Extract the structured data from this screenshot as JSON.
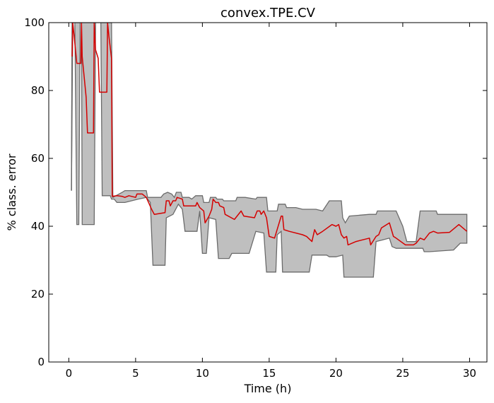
{
  "chart_data": {
    "type": "area",
    "title": "convex.TPE.CV",
    "xlabel": "Time (h)",
    "ylabel": "% class. error",
    "xlim": [
      -1.5,
      31.3
    ],
    "ylim": [
      0,
      100
    ],
    "xticks": [
      0,
      5,
      10,
      15,
      20,
      25,
      30
    ],
    "yticks": [
      0,
      20,
      40,
      60,
      80,
      100
    ],
    "grid": false,
    "colors": {
      "band_fill": "#bfbfbf",
      "band_edge": "#6b6b6b",
      "mean_line": "#d40000"
    },
    "band_upper": [
      [
        0.2,
        50.5
      ],
      [
        0.25,
        100
      ],
      [
        0.8,
        100
      ],
      [
        0.85,
        100
      ],
      [
        1.0,
        100
      ],
      [
        1.8,
        100
      ],
      [
        1.9,
        100
      ],
      [
        2.3,
        100
      ],
      [
        3.2,
        100
      ],
      [
        3.3,
        48.5
      ],
      [
        4.0,
        50.0
      ],
      [
        4.2,
        50.5
      ],
      [
        5.0,
        50.5
      ],
      [
        5.8,
        50.5
      ],
      [
        5.9,
        48.5
      ],
      [
        6.9,
        48.5
      ],
      [
        7.1,
        49.5
      ],
      [
        7.4,
        50.0
      ],
      [
        7.7,
        49.5
      ],
      [
        7.9,
        48.5
      ],
      [
        8.05,
        50.0
      ],
      [
        8.4,
        50.0
      ],
      [
        8.5,
        48.5
      ],
      [
        9.0,
        48.5
      ],
      [
        9.2,
        48.0
      ],
      [
        9.5,
        49.0
      ],
      [
        10.0,
        49.0
      ],
      [
        10.1,
        47.0
      ],
      [
        10.5,
        47.0
      ],
      [
        10.6,
        48.5
      ],
      [
        11.0,
        48.5
      ],
      [
        11.1,
        48.0
      ],
      [
        11.5,
        48.0
      ],
      [
        11.6,
        47.5
      ],
      [
        12.5,
        47.5
      ],
      [
        12.6,
        48.5
      ],
      [
        13.2,
        48.5
      ],
      [
        14.0,
        48.0
      ],
      [
        14.1,
        48.5
      ],
      [
        14.8,
        48.5
      ],
      [
        14.9,
        44.5
      ],
      [
        15.6,
        44.5
      ],
      [
        15.7,
        46.5
      ],
      [
        16.2,
        46.5
      ],
      [
        16.3,
        45.5
      ],
      [
        17.0,
        45.5
      ],
      [
        17.5,
        45.0
      ],
      [
        18.5,
        45.0
      ],
      [
        19.0,
        44.5
      ],
      [
        19.5,
        47.5
      ],
      [
        20.4,
        47.5
      ],
      [
        20.5,
        42.5
      ],
      [
        20.7,
        41.0
      ],
      [
        21.0,
        43.0
      ],
      [
        22.5,
        43.5
      ],
      [
        23.0,
        43.5
      ],
      [
        23.1,
        44.5
      ],
      [
        24.5,
        44.5
      ],
      [
        25.0,
        40.0
      ],
      [
        25.3,
        35.5
      ],
      [
        26.0,
        35.5
      ],
      [
        26.3,
        44.5
      ],
      [
        27.5,
        44.5
      ],
      [
        27.6,
        43.5
      ],
      [
        29.8,
        43.5
      ]
    ],
    "band_lower": [
      [
        29.8,
        35.0
      ],
      [
        29.3,
        35.0
      ],
      [
        28.8,
        33.0
      ],
      [
        27.0,
        32.5
      ],
      [
        26.6,
        32.5
      ],
      [
        26.5,
        33.5
      ],
      [
        24.5,
        33.5
      ],
      [
        24.2,
        34.0
      ],
      [
        24.0,
        36.5
      ],
      [
        23.5,
        36.0
      ],
      [
        23.0,
        35.5
      ],
      [
        22.8,
        25.0
      ],
      [
        20.6,
        25.0
      ],
      [
        20.5,
        31.5
      ],
      [
        20.0,
        31.0
      ],
      [
        19.5,
        31.0
      ],
      [
        19.3,
        31.5
      ],
      [
        18.2,
        31.5
      ],
      [
        18.0,
        26.5
      ],
      [
        16.0,
        26.5
      ],
      [
        15.9,
        38.5
      ],
      [
        15.6,
        37.5
      ],
      [
        15.5,
        26.5
      ],
      [
        14.8,
        26.5
      ],
      [
        14.6,
        38.0
      ],
      [
        14.0,
        38.5
      ],
      [
        13.5,
        32.0
      ],
      [
        12.2,
        32.0
      ],
      [
        12.0,
        30.5
      ],
      [
        11.2,
        30.5
      ],
      [
        11.0,
        42.0
      ],
      [
        10.5,
        42.5
      ],
      [
        10.3,
        32.0
      ],
      [
        10.0,
        32.0
      ],
      [
        9.8,
        44.5
      ],
      [
        9.6,
        38.5
      ],
      [
        8.7,
        38.5
      ],
      [
        8.5,
        45.0
      ],
      [
        8.2,
        46.5
      ],
      [
        7.8,
        43.5
      ],
      [
        7.3,
        42.5
      ],
      [
        7.2,
        28.5
      ],
      [
        6.3,
        28.5
      ],
      [
        6.1,
        47.0
      ],
      [
        5.8,
        48.5
      ],
      [
        5.2,
        48.0
      ],
      [
        4.2,
        47.0
      ],
      [
        4.0,
        47.0
      ],
      [
        3.6,
        47.0
      ],
      [
        3.4,
        48.0
      ],
      [
        3.2,
        48.0
      ],
      [
        3.1,
        49.0
      ],
      [
        2.5,
        49.0
      ],
      [
        2.4,
        100
      ],
      [
        2.0,
        100
      ],
      [
        1.9,
        40.5
      ],
      [
        1.0,
        40.5
      ],
      [
        0.95,
        100
      ],
      [
        0.85,
        100
      ],
      [
        0.75,
        40.5
      ],
      [
        0.6,
        40.5
      ],
      [
        0.45,
        100
      ],
      [
        0.3,
        100
      ]
    ],
    "mean": [
      [
        0.25,
        90
      ],
      [
        0.3,
        100
      ],
      [
        0.4,
        96
      ],
      [
        0.6,
        88
      ],
      [
        0.9,
        88
      ],
      [
        0.95,
        100
      ],
      [
        1.0,
        90
      ],
      [
        1.3,
        78
      ],
      [
        1.4,
        67.5
      ],
      [
        1.85,
        67.5
      ],
      [
        1.9,
        100
      ],
      [
        2.0,
        92
      ],
      [
        2.2,
        89.5
      ],
      [
        2.3,
        79.5
      ],
      [
        2.85,
        79.5
      ],
      [
        2.9,
        100
      ],
      [
        3.0,
        96
      ],
      [
        3.2,
        89.5
      ],
      [
        3.25,
        48.8
      ],
      [
        3.6,
        49
      ],
      [
        4.0,
        48.8
      ],
      [
        4.2,
        48.5
      ],
      [
        4.5,
        49
      ],
      [
        5.0,
        48.5
      ],
      [
        5.1,
        49.5
      ],
      [
        5.5,
        49.5
      ],
      [
        5.8,
        48.5
      ],
      [
        6.2,
        45
      ],
      [
        6.4,
        43.5
      ],
      [
        7.2,
        44
      ],
      [
        7.3,
        47.5
      ],
      [
        7.5,
        47.5
      ],
      [
        7.6,
        46
      ],
      [
        7.8,
        47.5
      ],
      [
        8.0,
        47.5
      ],
      [
        8.1,
        48.5
      ],
      [
        8.5,
        48
      ],
      [
        8.6,
        46
      ],
      [
        9.5,
        46
      ],
      [
        9.6,
        47
      ],
      [
        9.8,
        45.5
      ],
      [
        10.1,
        44.5
      ],
      [
        10.2,
        41
      ],
      [
        10.5,
        43
      ],
      [
        10.7,
        45
      ],
      [
        10.8,
        48
      ],
      [
        11.0,
        47
      ],
      [
        11.2,
        47
      ],
      [
        11.3,
        46
      ],
      [
        11.6,
        45.5
      ],
      [
        11.7,
        43.5
      ],
      [
        12.4,
        42
      ],
      [
        12.9,
        44.5
      ],
      [
        13.1,
        43
      ],
      [
        13.9,
        42.5
      ],
      [
        14.1,
        44.5
      ],
      [
        14.3,
        44.5
      ],
      [
        14.4,
        43.5
      ],
      [
        14.6,
        44.5
      ],
      [
        14.8,
        42.5
      ],
      [
        15.0,
        37
      ],
      [
        15.4,
        36.5
      ],
      [
        15.9,
        43
      ],
      [
        16.0,
        43
      ],
      [
        16.1,
        39
      ],
      [
        16.5,
        38.5
      ],
      [
        17.5,
        37.5
      ],
      [
        17.8,
        37
      ],
      [
        18.2,
        35.5
      ],
      [
        18.4,
        39
      ],
      [
        18.6,
        37.5
      ],
      [
        19.0,
        38.5
      ],
      [
        19.7,
        40.5
      ],
      [
        20.0,
        40
      ],
      [
        20.2,
        40.5
      ],
      [
        20.4,
        37.5
      ],
      [
        20.6,
        36.5
      ],
      [
        20.8,
        37
      ],
      [
        20.9,
        34.5
      ],
      [
        21.5,
        35.5
      ],
      [
        22.0,
        36
      ],
      [
        22.5,
        36.5
      ],
      [
        22.6,
        34.5
      ],
      [
        23.0,
        37
      ],
      [
        23.2,
        37.5
      ],
      [
        23.4,
        39.5
      ],
      [
        24.0,
        41
      ],
      [
        24.3,
        37
      ],
      [
        24.5,
        36.5
      ],
      [
        25.2,
        34.5
      ],
      [
        25.8,
        34.5
      ],
      [
        26.0,
        35
      ],
      [
        26.3,
        36.5
      ],
      [
        26.6,
        36
      ],
      [
        27.0,
        38
      ],
      [
        27.3,
        38.5
      ],
      [
        27.6,
        38
      ],
      [
        28.5,
        38.2
      ],
      [
        29.2,
        40.5
      ],
      [
        29.8,
        38.5
      ]
    ],
    "lone_line": [
      [
        0.2,
        50.5
      ],
      [
        0.25,
        100
      ]
    ]
  }
}
